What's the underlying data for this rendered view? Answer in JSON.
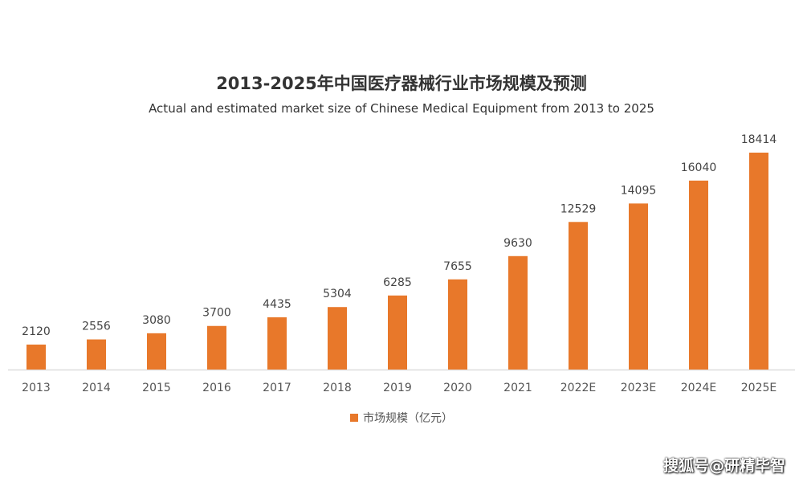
{
  "chart_data": {
    "type": "bar",
    "title": "2013-2025年中国医疗器械行业市场规模及预测",
    "subtitle": "Actual and estimated market size of Chinese Medical Equipment from 2013 to 2025",
    "categories": [
      "2013",
      "2014",
      "2015",
      "2016",
      "2017",
      "2018",
      "2019",
      "2020",
      "2021",
      "2022E",
      "2023E",
      "2024E",
      "2025E"
    ],
    "series": [
      {
        "name": "市场规模（亿元）",
        "values": [
          2120,
          2556,
          3080,
          3700,
          4435,
          5304,
          6285,
          7655,
          9630,
          12529,
          14095,
          16040,
          18414
        ],
        "color": "#E8782A"
      }
    ],
    "xlabel": "",
    "ylabel": "",
    "grid": false,
    "legend": "bottom",
    "data_labels": true
  },
  "watermark": "搜狐号@研精毕智"
}
